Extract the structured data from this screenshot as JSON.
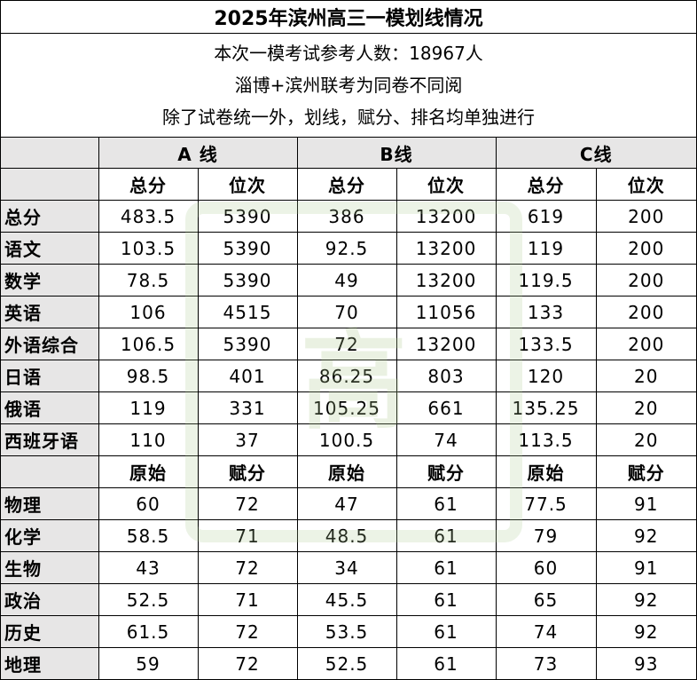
{
  "title": "2025年滨州高三一模划线情况",
  "info_lines": [
    "本次一模考试参考人数：18967人",
    "淄博+滨州联考为同卷不同阅",
    "除了试卷统一外，划线，赋分、排名均单独进行"
  ],
  "groups": [
    "A 线",
    "B线",
    "C线"
  ],
  "sub_header_1": [
    "总分",
    "位次",
    "总分",
    "位次",
    "总分",
    "位次"
  ],
  "rows_1": [
    {
      "subject": "总分",
      "values": [
        "483.5",
        "5390",
        "386",
        "13200",
        "619",
        "200"
      ]
    },
    {
      "subject": "语文",
      "values": [
        "103.5",
        "5390",
        "92.5",
        "13200",
        "119",
        "200"
      ]
    },
    {
      "subject": "数学",
      "values": [
        "78.5",
        "5390",
        "49",
        "13200",
        "119.5",
        "200"
      ]
    },
    {
      "subject": "英语",
      "values": [
        "106",
        "4515",
        "70",
        "11056",
        "133",
        "200"
      ]
    },
    {
      "subject": "外语综合",
      "values": [
        "106.5",
        "5390",
        "72",
        "13200",
        "133.5",
        "200"
      ]
    },
    {
      "subject": "日语",
      "values": [
        "98.5",
        "401",
        "86.25",
        "803",
        "120",
        "20"
      ]
    },
    {
      "subject": "俄语",
      "values": [
        "119",
        "331",
        "105.25",
        "661",
        "135.25",
        "20"
      ]
    },
    {
      "subject": "西班牙语",
      "values": [
        "110",
        "37",
        "100.5",
        "74",
        "113.5",
        "20"
      ]
    }
  ],
  "sub_header_2": [
    "原始",
    "赋分",
    "原始",
    "赋分",
    "原始",
    "赋分"
  ],
  "rows_2": [
    {
      "subject": "物理",
      "values": [
        "60",
        "72",
        "47",
        "61",
        "77.5",
        "91"
      ]
    },
    {
      "subject": "化学",
      "values": [
        "58.5",
        "71",
        "48.5",
        "61",
        "79",
        "92"
      ]
    },
    {
      "subject": "生物",
      "values": [
        "43",
        "72",
        "34",
        "61",
        "60",
        "91"
      ]
    },
    {
      "subject": "政治",
      "values": [
        "52.5",
        "71",
        "45.5",
        "61",
        "65",
        "92"
      ]
    },
    {
      "subject": "历史",
      "values": [
        "61.5",
        "72",
        "53.5",
        "61",
        "74",
        "92"
      ]
    },
    {
      "subject": "地理",
      "values": [
        "59",
        "72",
        "52.5",
        "61",
        "73",
        "93"
      ]
    }
  ],
  "watermark": "高"
}
